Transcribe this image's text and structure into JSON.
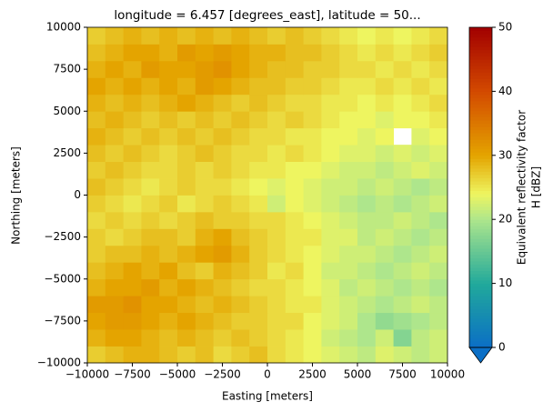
{
  "chart_data": {
    "type": "heatmap",
    "title": "longitude = 6.457 [degrees_east], latitude = 50...",
    "x_label": "Easting [meters]",
    "y_label": "Northing [meters]",
    "colorbar_label": [
      "Equivalent reflectivity factor",
      "H [dBZ]"
    ],
    "xlim": [
      -10000,
      10000
    ],
    "ylim": [
      -10000,
      10000
    ],
    "xticks": [
      {
        "value": -10000,
        "label": "−10000"
      },
      {
        "value": -7500,
        "label": "−7500"
      },
      {
        "value": -5000,
        "label": "−5000"
      },
      {
        "value": -2500,
        "label": "−2500"
      },
      0,
      2500,
      5000,
      7500,
      10000
    ],
    "yticks": [
      {
        "value": -10000,
        "label": "−10000"
      },
      {
        "value": -7500,
        "label": "−7500"
      },
      {
        "value": -5000,
        "label": "−5000"
      },
      {
        "value": -2500,
        "label": "−2500"
      },
      0,
      2500,
      5000,
      7500,
      10000
    ],
    "clim": [
      0,
      50
    ],
    "cticks": [
      0,
      10,
      20,
      30,
      40,
      50
    ],
    "extend": "min",
    "colormap": [
      {
        "value": 0,
        "color": "#0b6fc6"
      },
      {
        "value": 10,
        "color": "#21a99b"
      },
      {
        "value": 20,
        "color": "#aee68c"
      },
      {
        "value": 24,
        "color": "#eef560"
      },
      {
        "value": 30,
        "color": "#e4a400"
      },
      {
        "value": 40,
        "color": "#d34a00"
      },
      {
        "value": 50,
        "color": "#a20000"
      }
    ],
    "z": [
      [
        27,
        28,
        29,
        29,
        28,
        27,
        28,
        26,
        27,
        28,
        26,
        25,
        24,
        23,
        22,
        21,
        23,
        22,
        21,
        22
      ],
      [
        29,
        30,
        30,
        29,
        28,
        29,
        28,
        27,
        28,
        27,
        26,
        25,
        24,
        22,
        21,
        20,
        22,
        17,
        21,
        22
      ],
      [
        30,
        31,
        31,
        30,
        29,
        30,
        29,
        28,
        27,
        27,
        26,
        26,
        24,
        23,
        22,
        20,
        18,
        19,
        20,
        21
      ],
      [
        31,
        31,
        32,
        30,
        30,
        29,
        28,
        29,
        28,
        27,
        26,
        25,
        25,
        23,
        22,
        21,
        20,
        21,
        22,
        21
      ],
      [
        29,
        30,
        30,
        31,
        29,
        30,
        29,
        28,
        27,
        26,
        26,
        25,
        24,
        23,
        21,
        22,
        21,
        20,
        21,
        20
      ],
      [
        28,
        29,
        30,
        29,
        30,
        28,
        27,
        29,
        28,
        27,
        25,
        26,
        24,
        22,
        22,
        21,
        20,
        21,
        22,
        21
      ],
      [
        27,
        28,
        28,
        29,
        28,
        29,
        30,
        31,
        29,
        27,
        26,
        25,
        24,
        23,
        22,
        22,
        21,
        20,
        21,
        22
      ],
      [
        27,
        26,
        27,
        28,
        28,
        27,
        29,
        30,
        28,
        27,
        26,
        25,
        25,
        23,
        23,
        21,
        22,
        21,
        20,
        21
      ],
      [
        26,
        27,
        26,
        27,
        26,
        27,
        28,
        27,
        27,
        26,
        26,
        25,
        24,
        23,
        22,
        21,
        21,
        22,
        21,
        20
      ],
      [
        27,
        26,
        25,
        26,
        27,
        25,
        26,
        27,
        26,
        25,
        22,
        24,
        23,
        22,
        21,
        20,
        21,
        20,
        21,
        22
      ],
      [
        28,
        27,
        26,
        25,
        26,
        27,
        26,
        26,
        25,
        24,
        23,
        24,
        23,
        22,
        22,
        21,
        22,
        21,
        20,
        21
      ],
      [
        27,
        28,
        27,
        26,
        26,
        27,
        26,
        27,
        26,
        25,
        25,
        24,
        24,
        23,
        22,
        22,
        21,
        22,
        23,
        22
      ],
      [
        28,
        27,
        28,
        27,
        26,
        27,
        28,
        27,
        26,
        26,
        25,
        26,
        25,
        24,
        23,
        23,
        22,
        23,
        22,
        23
      ],
      [
        29,
        28,
        27,
        28,
        27,
        28,
        27,
        28,
        27,
        26,
        26,
        25,
        25,
        24,
        24,
        23,
        24,
        null,
        23,
        24
      ],
      [
        28,
        29,
        28,
        27,
        28,
        27,
        28,
        27,
        28,
        27,
        26,
        27,
        26,
        25,
        24,
        24,
        23,
        24,
        24,
        25
      ],
      [
        29,
        28,
        29,
        28,
        29,
        30,
        29,
        28,
        27,
        28,
        27,
        26,
        26,
        25,
        25,
        24,
        25,
        24,
        25,
        26
      ],
      [
        30,
        29,
        30,
        29,
        30,
        29,
        31,
        30,
        29,
        28,
        28,
        27,
        27,
        26,
        25,
        25,
        26,
        25,
        26,
        25
      ],
      [
        29,
        30,
        29,
        31,
        30,
        30,
        31,
        32,
        30,
        29,
        28,
        28,
        27,
        27,
        26,
        26,
        25,
        26,
        25,
        26
      ],
      [
        28,
        29,
        30,
        30,
        29,
        31,
        30,
        31,
        30,
        29,
        29,
        28,
        28,
        27,
        26,
        25,
        26,
        25,
        26,
        27
      ],
      [
        27,
        28,
        29,
        28,
        29,
        28,
        29,
        28,
        29,
        28,
        27,
        28,
        27,
        26,
        25,
        24,
        25,
        24,
        25,
        26
      ]
    ]
  }
}
